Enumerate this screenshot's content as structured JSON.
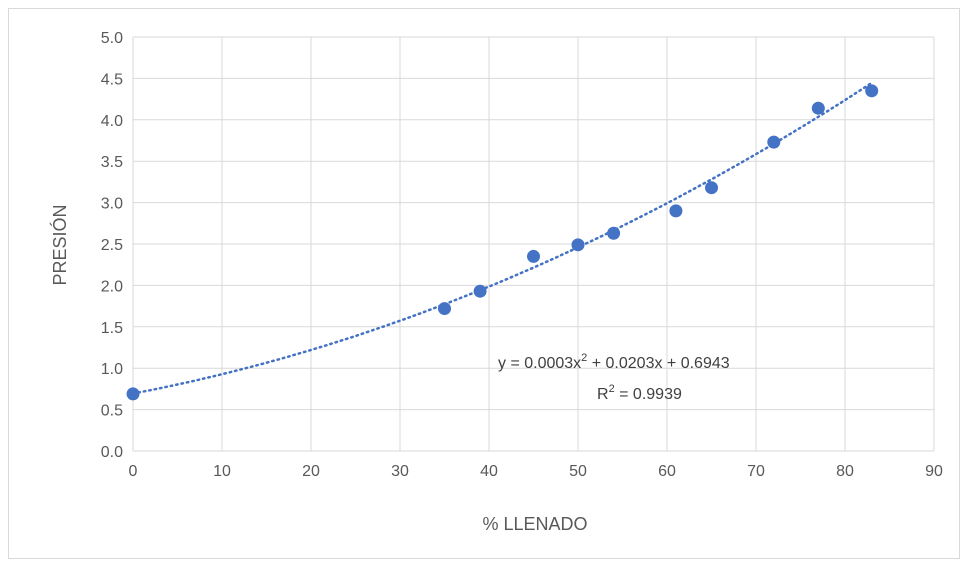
{
  "chart_data": {
    "type": "scatter",
    "title": "",
    "xlabel": "% LLENADO",
    "ylabel": "PRESIÓN",
    "xlim": [
      0,
      90
    ],
    "ylim": [
      0,
      5
    ],
    "x_ticks": [
      "0",
      "10",
      "20",
      "30",
      "40",
      "50",
      "60",
      "70",
      "80",
      "90"
    ],
    "y_ticks": [
      "0.0",
      "0.5",
      "1.0",
      "1.5",
      "2.0",
      "2.5",
      "3.0",
      "3.5",
      "4.0",
      "4.5",
      "5.0"
    ],
    "grid": "vertical and horizontal",
    "legend": "none",
    "series": [
      {
        "points": [
          {
            "x": 0,
            "y": 0.69
          },
          {
            "x": 35,
            "y": 1.72
          },
          {
            "x": 39,
            "y": 1.93
          },
          {
            "x": 45,
            "y": 2.35
          },
          {
            "x": 50,
            "y": 2.49
          },
          {
            "x": 54,
            "y": 2.63
          },
          {
            "x": 61,
            "y": 2.9
          },
          {
            "x": 65,
            "y": 3.18
          },
          {
            "x": 72,
            "y": 3.73
          },
          {
            "x": 77,
            "y": 4.14
          },
          {
            "x": 83,
            "y": 4.35
          }
        ],
        "color": "#4472c4"
      }
    ],
    "trendline": {
      "type": "polynomial",
      "coefficients": [
        0.0003,
        0.0203,
        0.6943
      ],
      "x_range": [
        0,
        83
      ],
      "style": "dotted",
      "color": "#4472c4"
    },
    "annotations": {
      "equation_prefix": "y = 0.0003x",
      "equation_sup": "2",
      "equation_suffix": " + 0.0203x + 0.6943",
      "r2_prefix": "R",
      "r2_sup": "2",
      "r2_suffix": " = 0.9939"
    }
  }
}
